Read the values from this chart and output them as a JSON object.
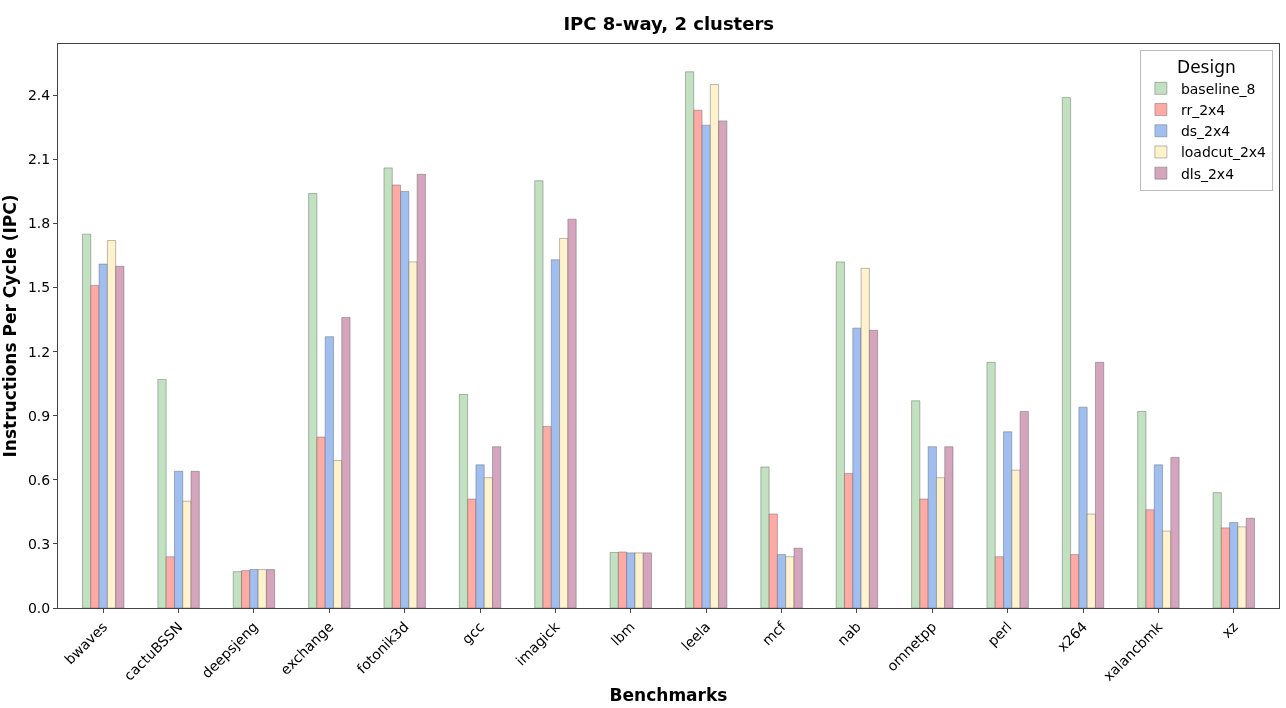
{
  "chart_data": {
    "type": "bar",
    "title": "IPC 8-way, 2 clusters",
    "xlabel": "Benchmarks",
    "ylabel": "Instructions Per Cycle (IPC)",
    "legend_title": "Design",
    "legend": "top right",
    "grid": false,
    "categories": [
      "bwaves",
      "cactuBSSN",
      "deepsjeng",
      "exchange",
      "fotonik3d",
      "gcc",
      "imagick",
      "lbm",
      "leela",
      "mcf",
      "nab",
      "omnetpp",
      "perl",
      "x264",
      "xalancbmk",
      "xz"
    ],
    "ylim": [
      0,
      2.64
    ],
    "yticks": [
      {
        "value": 0,
        "label": "0.0"
      },
      0.3,
      0.6,
      0.9,
      1.2,
      1.5,
      1.8,
      2.1,
      2.4
    ],
    "series": [
      {
        "name": "baseline_8",
        "color": "#c1e1c1",
        "values": [
          1.75,
          1.07,
          0.17,
          1.94,
          2.06,
          1.0,
          2.0,
          0.26,
          2.51,
          0.66,
          1.62,
          0.97,
          1.15,
          2.39,
          0.92,
          0.54
        ]
      },
      {
        "name": "rr_2x4",
        "color": "#ffaaa5",
        "values": [
          1.51,
          0.24,
          0.175,
          0.8,
          1.98,
          0.51,
          0.85,
          0.262,
          2.33,
          0.44,
          0.63,
          0.51,
          0.24,
          0.25,
          0.46,
          0.375
        ]
      },
      {
        "name": "ds_2x4",
        "color": "#a0bff0",
        "values": [
          1.61,
          0.64,
          0.18,
          1.27,
          1.95,
          0.67,
          1.63,
          0.258,
          2.26,
          0.25,
          1.31,
          0.755,
          0.825,
          0.94,
          0.67,
          0.4
        ]
      },
      {
        "name": "loadcut_2x4",
        "color": "#fff2cc",
        "values": [
          1.72,
          0.5,
          0.18,
          0.69,
          1.62,
          0.61,
          1.73,
          0.258,
          2.45,
          0.24,
          1.59,
          0.61,
          0.645,
          0.44,
          0.36,
          0.38
        ]
      },
      {
        "name": "dls_2x4",
        "color": "#d4a5bd",
        "values": [
          1.6,
          0.64,
          0.18,
          1.36,
          2.03,
          0.755,
          1.82,
          0.258,
          2.28,
          0.28,
          1.3,
          0.755,
          0.92,
          1.15,
          0.705,
          0.42
        ]
      }
    ]
  }
}
